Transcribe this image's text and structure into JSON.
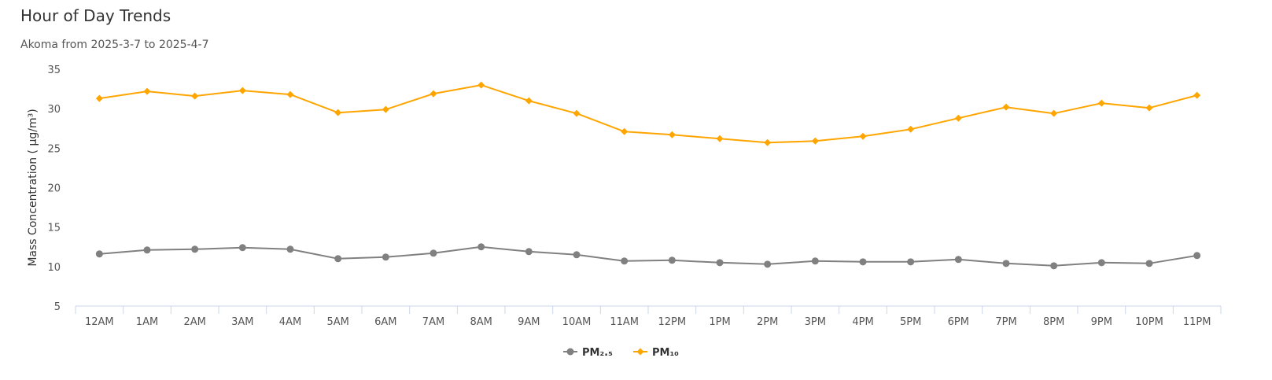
{
  "title": "Hour of Day Trends",
  "subtitle": "Akoma from 2025-3-7 to 2025-4-7",
  "chart_data": {
    "type": "line",
    "title": "Hour of Day Trends",
    "subtitle": "Akoma from 2025-3-7 to 2025-4-7",
    "xlabel": "",
    "ylabel": "Mass Concentration ( μg/m³)",
    "ylim": [
      5,
      35
    ],
    "yticks": [
      5,
      10,
      15,
      20,
      25,
      30,
      35
    ],
    "grid": false,
    "legend_position": "bottom-center",
    "categories": [
      "12AM",
      "1AM",
      "2AM",
      "3AM",
      "4AM",
      "5AM",
      "6AM",
      "7AM",
      "8AM",
      "9AM",
      "10AM",
      "11AM",
      "12PM",
      "1PM",
      "2PM",
      "3PM",
      "4PM",
      "5PM",
      "6PM",
      "7PM",
      "8PM",
      "9PM",
      "10PM",
      "11PM"
    ],
    "series": [
      {
        "name": "PM₂.₅",
        "color": "#808080",
        "marker": "circle",
        "values": [
          11.6,
          12.1,
          12.2,
          12.4,
          12.2,
          11.0,
          11.2,
          11.7,
          12.5,
          11.9,
          11.5,
          10.7,
          10.8,
          10.5,
          10.3,
          10.7,
          10.6,
          10.6,
          10.9,
          10.4,
          10.1,
          10.5,
          10.4,
          11.4
        ]
      },
      {
        "name": "PM₁₀",
        "color": "#FFA500",
        "marker": "diamond",
        "values": [
          31.3,
          32.2,
          31.6,
          32.3,
          31.8,
          29.5,
          29.9,
          31.9,
          33.0,
          31.0,
          29.4,
          27.1,
          26.7,
          26.2,
          25.7,
          25.9,
          26.5,
          27.4,
          28.8,
          30.2,
          29.4,
          30.7,
          30.1,
          31.7
        ]
      }
    ]
  }
}
